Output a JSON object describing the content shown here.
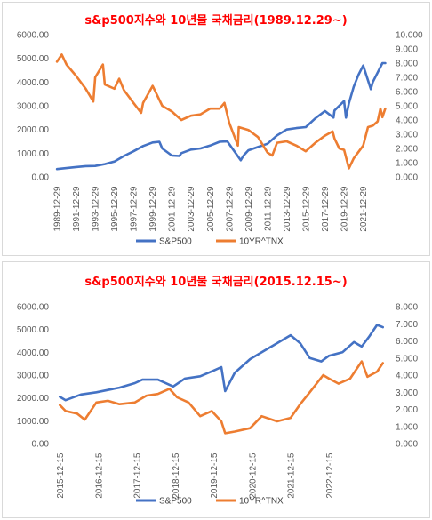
{
  "chart_data": [
    {
      "type": "line",
      "title": "s&p500지수와 10년물 국채금리(1989.12.29~)",
      "categories": [
        "1989-12-29",
        "1991-12-29",
        "1993-12-29",
        "1995-12-29",
        "1997-12-29",
        "1999-12-29",
        "2001-12-29",
        "2003-12-29",
        "2005-12-29",
        "2007-12-29",
        "2009-12-29",
        "2011-12-29",
        "2013-12-29",
        "2015-12-29",
        "2017-12-29",
        "2019-12-29",
        "2021-12-29"
      ],
      "y_left": {
        "ticks": [
          "0.00",
          "1000.00",
          "2000.00",
          "3000.00",
          "4000.00",
          "5000.00",
          "6000.00"
        ],
        "ylim": [
          0,
          6000
        ]
      },
      "y_right": {
        "ticks": [
          "0.000",
          "1.000",
          "2.000",
          "3.000",
          "4.000",
          "5.000",
          "6.000",
          "7.000",
          "8.000",
          "9.000",
          "10.000"
        ],
        "ylim": [
          0,
          10
        ]
      },
      "grid": false,
      "legend_position": "bottom",
      "series": [
        {
          "name": "S&P500",
          "color": "#4472c4",
          "axis": "left",
          "x": [
            1990,
            1991,
            1992,
            1993,
            1994,
            1995,
            1996,
            1997,
            1998,
            1999,
            2000,
            2000.7,
            2001,
            2002,
            2002.8,
            2003,
            2004,
            2005,
            2006,
            2007,
            2007.8,
            2008.5,
            2009.2,
            2009.5,
            2010,
            2011,
            2012,
            2013,
            2014,
            2015,
            2016,
            2017,
            2018,
            2018.9,
            2019,
            2020,
            2020.2,
            2020.5,
            2021,
            2021.5,
            2022,
            2022.8,
            2023,
            2023.5,
            2024,
            2024.3
          ],
          "y": [
            330,
            370,
            415,
            455,
            460,
            540,
            650,
            880,
            1080,
            1300,
            1450,
            1480,
            1200,
            900,
            880,
            1000,
            1150,
            1200,
            1320,
            1480,
            1500,
            1100,
            700,
            900,
            1120,
            1260,
            1400,
            1750,
            2000,
            2060,
            2100,
            2470,
            2780,
            2500,
            2800,
            3200,
            2500,
            3100,
            3800,
            4300,
            4700,
            3700,
            4000,
            4400,
            4800,
            4800
          ]
        },
        {
          "name": "10YR^TNX",
          "color": "#ed7d31",
          "axis": "right",
          "x": [
            1990,
            1990.5,
            1991,
            1992,
            1993,
            1993.8,
            1994,
            1994.8,
            1995,
            1996,
            1996.5,
            1997,
            1998,
            1998.8,
            1999,
            2000,
            2001,
            2002,
            2003,
            2004,
            2005,
            2006,
            2007,
            2007.5,
            2008,
            2008.9,
            2009,
            2010,
            2011,
            2012,
            2012.5,
            2013,
            2014,
            2015,
            2016,
            2017,
            2018,
            2018.8,
            2019,
            2019.5,
            2020,
            2020.5,
            2021,
            2022,
            2022.5,
            2023,
            2023.5,
            2023.8,
            2024,
            2024.3
          ],
          "y": [
            8.1,
            8.6,
            7.9,
            7.1,
            6.2,
            5.3,
            7.0,
            7.9,
            6.5,
            6.2,
            6.9,
            6.1,
            5.2,
            4.5,
            5.2,
            6.4,
            5.0,
            4.6,
            4.0,
            4.3,
            4.4,
            4.8,
            4.8,
            5.2,
            3.8,
            2.2,
            3.5,
            3.3,
            2.8,
            1.7,
            1.5,
            2.4,
            2.5,
            2.2,
            1.8,
            2.4,
            2.9,
            3.2,
            2.7,
            2.0,
            1.9,
            0.6,
            1.3,
            2.2,
            3.5,
            3.6,
            3.9,
            4.8,
            4.2,
            4.8
          ]
        }
      ]
    },
    {
      "type": "line",
      "title": "s&p500지수와 10년물 국채금리(2015.12.15~)",
      "categories": [
        "2015-12-15",
        "2016-12-15",
        "2017-12-15",
        "2018-12-15",
        "2019-12-15",
        "2020-12-15",
        "2021-12-15",
        "2022-12-15"
      ],
      "y_left": {
        "ticks": [
          "0.00",
          "1000.00",
          "2000.00",
          "3000.00",
          "4000.00",
          "5000.00",
          "6000.00"
        ],
        "ylim": [
          0,
          6000
        ]
      },
      "y_right": {
        "ticks": [
          "0.000",
          "1.000",
          "2.000",
          "3.000",
          "4.000",
          "5.000",
          "6.000",
          "7.000",
          "8.000"
        ],
        "ylim": [
          0,
          8
        ]
      },
      "grid": false,
      "legend_position": "bottom",
      "series": [
        {
          "name": "S&P500",
          "color": "#4472c4",
          "axis": "left",
          "x": [
            2015.95,
            2016.1,
            2016.5,
            2016.9,
            2017.2,
            2017.5,
            2017.9,
            2018.1,
            2018.5,
            2018.9,
            2019.2,
            2019.6,
            2019.95,
            2020.15,
            2020.25,
            2020.5,
            2020.9,
            2021.3,
            2021.6,
            2021.95,
            2022.2,
            2022.45,
            2022.75,
            2022.95,
            2023.3,
            2023.6,
            2023.8,
            2024.0,
            2024.2,
            2024.35
          ],
          "y": [
            2050,
            1900,
            2150,
            2250,
            2350,
            2450,
            2650,
            2800,
            2800,
            2500,
            2850,
            2950,
            3200,
            3350,
            2300,
            3100,
            3700,
            4100,
            4400,
            4750,
            4400,
            3750,
            3600,
            3850,
            4000,
            4450,
            4250,
            4700,
            5200,
            5100
          ]
        },
        {
          "name": "10YR^TNX",
          "color": "#ed7d31",
          "axis": "right",
          "x": [
            2015.95,
            2016.1,
            2016.4,
            2016.6,
            2016.9,
            2017.2,
            2017.5,
            2017.9,
            2018.2,
            2018.5,
            2018.8,
            2019.0,
            2019.3,
            2019.6,
            2019.9,
            2020.15,
            2020.25,
            2020.5,
            2020.9,
            2021.2,
            2021.6,
            2021.95,
            2022.2,
            2022.45,
            2022.8,
            2022.95,
            2023.2,
            2023.5,
            2023.8,
            2023.95,
            2024.2,
            2024.35
          ],
          "y": [
            2.25,
            1.9,
            1.75,
            1.4,
            2.4,
            2.5,
            2.3,
            2.4,
            2.8,
            2.9,
            3.2,
            2.7,
            2.4,
            1.6,
            1.9,
            1.3,
            0.6,
            0.7,
            0.9,
            1.6,
            1.3,
            1.5,
            2.3,
            3.0,
            4.0,
            3.8,
            3.5,
            3.8,
            4.8,
            3.9,
            4.2,
            4.7
          ]
        }
      ]
    }
  ]
}
